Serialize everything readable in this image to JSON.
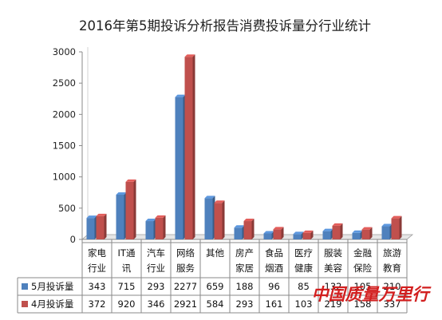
{
  "chart_data": {
    "type": "bar",
    "title": "2016年第5期投诉分析报告消费投诉量分行业统计",
    "categories": [
      [
        "家电",
        "行业"
      ],
      [
        "IT通",
        "讯"
      ],
      [
        "汽车",
        "行业"
      ],
      [
        "网络",
        "服务"
      ],
      [
        "其他",
        ""
      ],
      [
        "房产",
        "家居"
      ],
      [
        "食品",
        "烟酒"
      ],
      [
        "医疗",
        "健康"
      ],
      [
        "服装",
        "美容"
      ],
      [
        "金融",
        "保险"
      ],
      [
        "旅游",
        "教育"
      ]
    ],
    "series": [
      {
        "name": "5月投诉量",
        "color": "#4f81bd",
        "values": [
          343,
          715,
          293,
          2277,
          659,
          188,
          96,
          85,
          132,
          105,
          210
        ]
      },
      {
        "name": "4月投诉量",
        "color": "#c0504d",
        "values": [
          372,
          920,
          346,
          2921,
          584,
          293,
          161,
          103,
          219,
          158,
          337
        ]
      }
    ],
    "yticks": [
      "0",
      "500",
      "1000",
      "1500",
      "2000",
      "2500",
      "3000"
    ],
    "ylim": [
      0,
      3000
    ],
    "grid": false,
    "legend": "table below chart"
  },
  "watermark": "中国质量万里行"
}
